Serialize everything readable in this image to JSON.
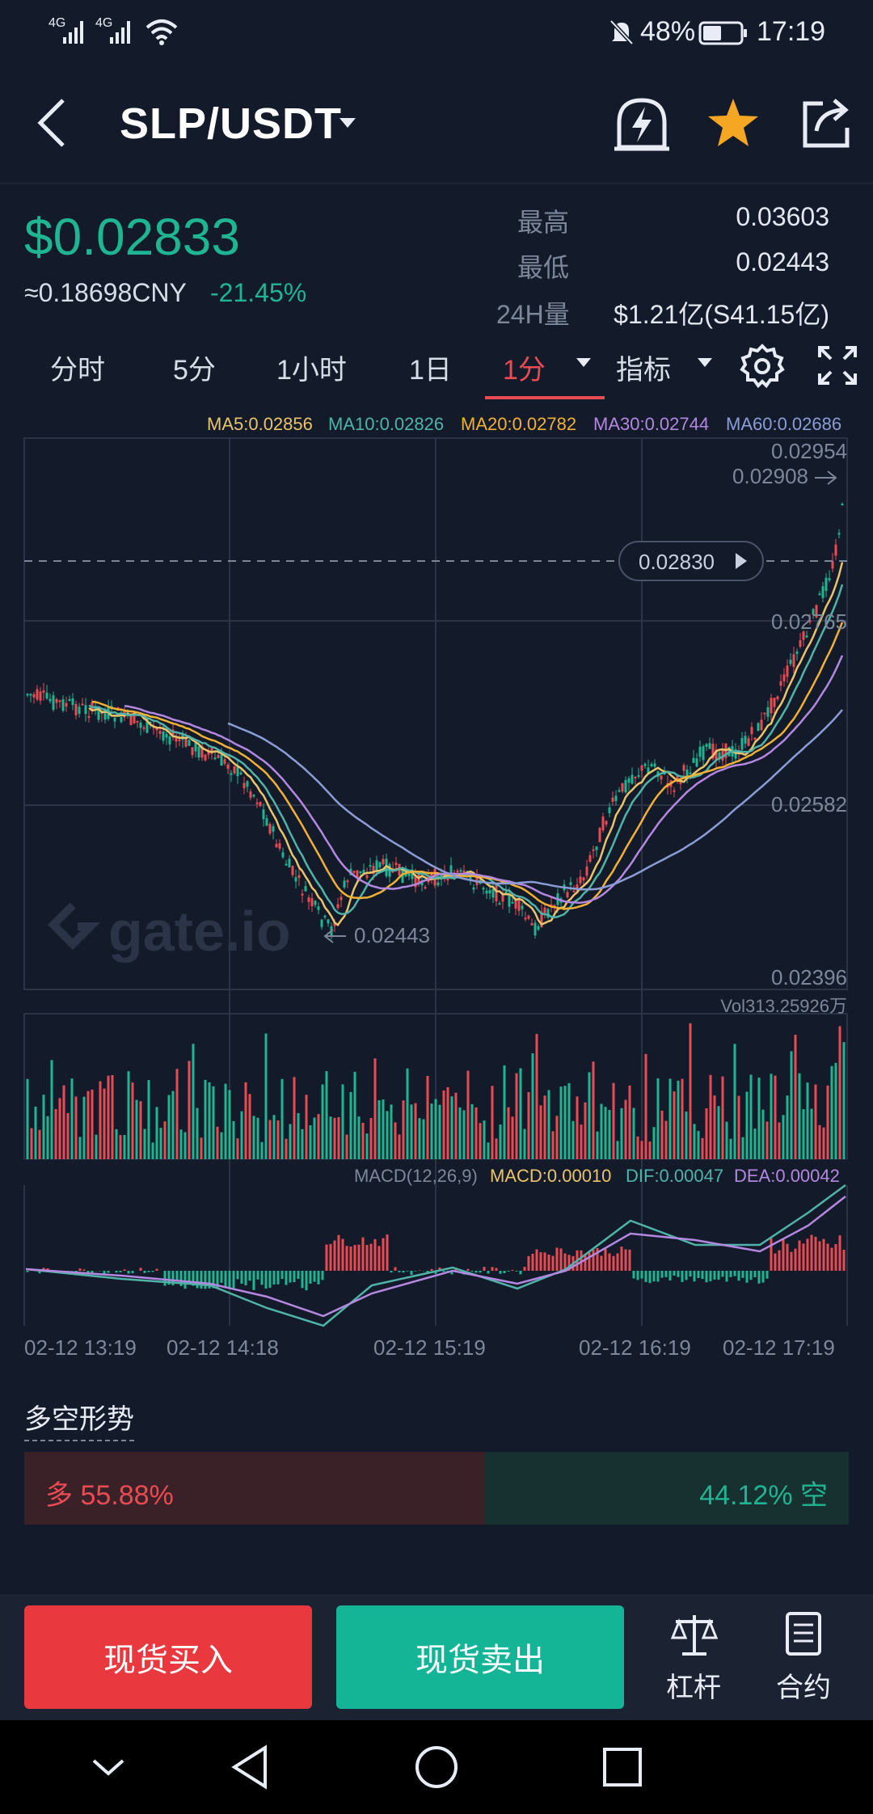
{
  "status_bar": {
    "network1": "4G",
    "network2": "4G",
    "battery_pct": "48%",
    "time": "17:19"
  },
  "header": {
    "pair": "SLP/USDT"
  },
  "price": {
    "last": "$0.02833",
    "cny": "≈0.18698CNY",
    "change": "-21.45%",
    "high_label": "最高",
    "high": "0.03603",
    "low_label": "最低",
    "low": "0.02443",
    "vol_label": "24H量",
    "vol": "$1.21亿(S41.15亿)"
  },
  "tabs": [
    {
      "label": "分时"
    },
    {
      "label": "5分"
    },
    {
      "label": "1小时"
    },
    {
      "label": "1日"
    },
    {
      "label": "1分"
    },
    {
      "label": "指标"
    }
  ],
  "ma_legend": [
    {
      "label": "MA5:0.02856",
      "color": "#e9c46a"
    },
    {
      "label": "MA10:0.02826",
      "color": "#4fb3a8"
    },
    {
      "label": "MA20:0.02782",
      "color": "#f2b134"
    },
    {
      "label": "MA30:0.02744",
      "color": "#b487e0"
    },
    {
      "label": "MA60:0.02686",
      "color": "#8a9dd6"
    }
  ],
  "chart": {
    "price_axis": [
      "0.02954",
      "0.02765",
      "0.02582",
      "0.02396"
    ],
    "max_marker": "0.02908",
    "current_price_tag": "0.02830",
    "min_marker": "0.02443",
    "watermark": "gate.io",
    "volume_label": "Vol313.25926万",
    "macd_legend": {
      "params": "MACD(12,26,9)",
      "macd": "MACD:0.00010",
      "dif": "DIF:0.00047",
      "dea": "DEA:0.00042"
    },
    "time_axis": [
      "02-12 13:19",
      "02-12 14:18",
      "02-12 15:19",
      "02-12 16:19",
      "02-12 17:19"
    ]
  },
  "sentiment": {
    "title": "多空形势",
    "long_label": "多 55.88%",
    "short_label": "44.12% 空",
    "long_pct": 55.88
  },
  "actions": {
    "buy": "现货买入",
    "sell": "现货卖出",
    "leverage": "杠杆",
    "contract": "合约"
  },
  "colors": {
    "up": "#e94b52",
    "down": "#1fb592",
    "bg": "#131b2b"
  }
}
